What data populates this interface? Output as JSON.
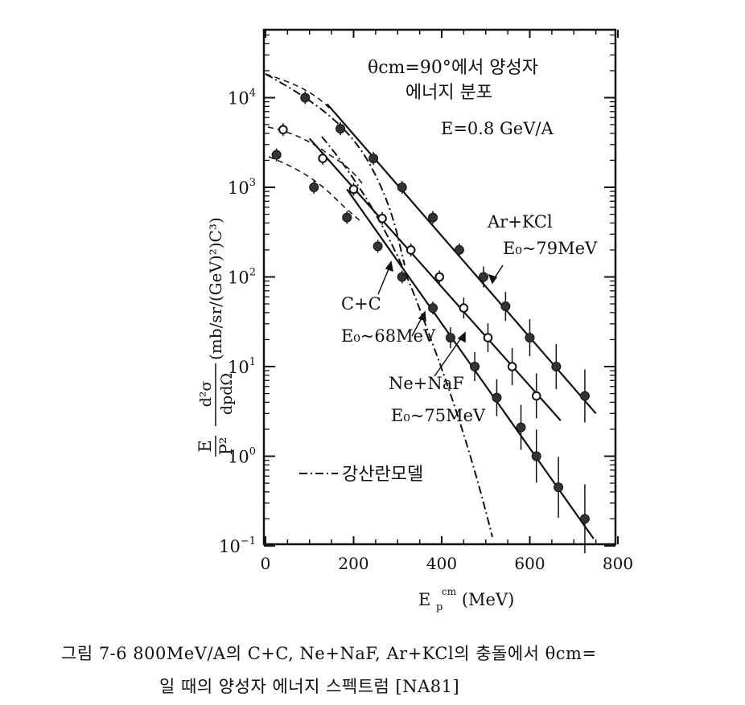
{
  "chart_data": {
    "type": "scatter",
    "title_line1": "θcm=90°에서 양성자",
    "title_line2": "에너지 분포",
    "energy_note": "E=0.8  GeV/A",
    "xlabel": "E",
    "xlabel_sup": "cm",
    "xlabel_sub": "p",
    "xlabel_unit": "(MeV)",
    "ylabel": "E/P² · d²σ/dpdΩ (mb/sr/(GeV)²)C³)",
    "xlim": [
      0,
      800
    ],
    "ylim_log10": [
      -1,
      4.9
    ],
    "log_y": true,
    "x_ticks": [
      "0",
      "200",
      "400",
      "600",
      "800"
    ],
    "y_ticks": [
      {
        "base": "10",
        "exp": "4",
        "value": 10000
      },
      {
        "base": "10",
        "exp": "3",
        "value": 1000
      },
      {
        "base": "10",
        "exp": "2",
        "value": 100
      },
      {
        "base": "10",
        "exp": "1",
        "value": 10
      },
      {
        "base": "10",
        "exp": "0",
        "value": 1
      },
      {
        "base": "10",
        "exp": "−1",
        "value": 0.1
      }
    ],
    "series": [
      {
        "name": "Ar+KCl",
        "e0_label": "E₀~79MeV",
        "marker": "filled",
        "x": [
          90,
          170,
          245,
          310,
          380,
          440,
          495,
          545,
          600,
          660,
          725
        ],
        "y": [
          10000,
          4500,
          2100,
          1000,
          460,
          200,
          100,
          47,
          21,
          10,
          4.7
        ],
        "fit": [
          [
            140,
            8500
          ],
          [
            750,
            3
          ]
        ]
      },
      {
        "name": "Ne+NaF",
        "e0_label": "E₀~75MeV",
        "marker": "open",
        "x": [
          40,
          130,
          200,
          265,
          330,
          395,
          450,
          505,
          560,
          615
        ],
        "y": [
          4400,
          2100,
          950,
          450,
          200,
          100,
          45,
          21,
          10,
          4.7
        ],
        "fit": [
          [
            100,
            3500
          ],
          [
            670,
            2.5
          ]
        ]
      },
      {
        "name": "C+C",
        "e0_label": "E₀~68MeV",
        "marker": "filled",
        "x": [
          25,
          110,
          185,
          255,
          310,
          380,
          420,
          475,
          525,
          580,
          615,
          665,
          725
        ],
        "y": [
          2300,
          1000,
          460,
          220,
          100,
          45,
          21,
          10,
          4.5,
          2.1,
          1.0,
          0.45,
          0.2
        ],
        "fit": [
          [
            185,
            950
          ],
          [
            745,
            0.12
          ]
        ]
      }
    ],
    "model_legend": "강산란모델",
    "annotations": [
      "Ar+KCl",
      "E₀~79MeV",
      "C+C",
      "E₀~68MeV",
      "Ne+NaF",
      "E₀~75MeV"
    ]
  },
  "caption_line1": "그림 7-6   800MeV/A의  C+C,  Ne+NaF,  Ar+KCl의  충돌에서  θcm=",
  "caption_line2": "일 때의 양성자 에너지 스펙트럼 [NA81]"
}
